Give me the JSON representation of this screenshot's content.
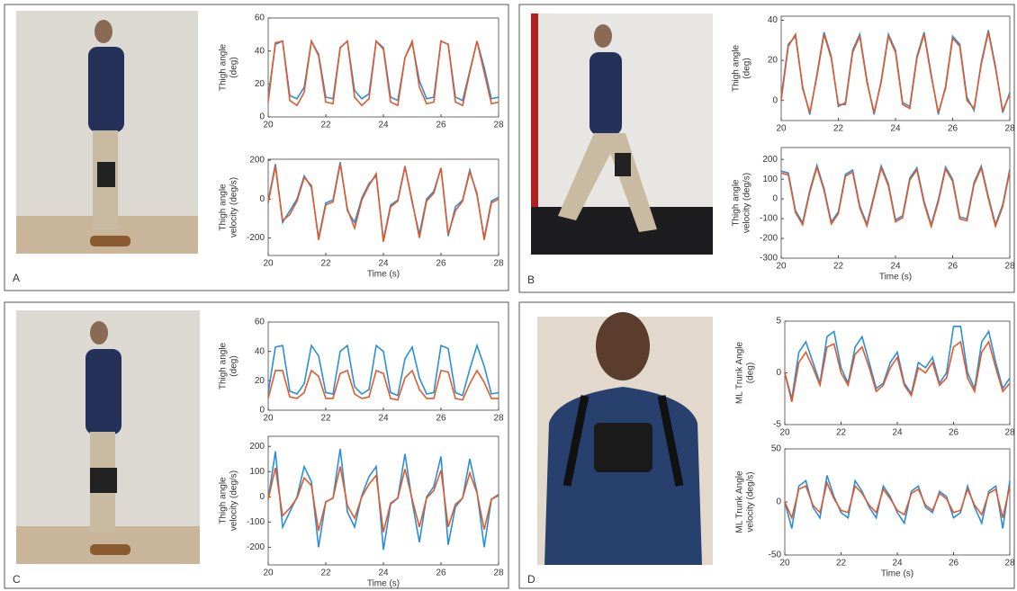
{
  "panels": [
    {
      "label": "A"
    },
    {
      "label": "B"
    },
    {
      "label": "C"
    },
    {
      "label": "D"
    }
  ],
  "chart_data": [
    {
      "type": "line",
      "ylabel": [
        "Thigh angle",
        "(deg)"
      ],
      "xlim": [
        20,
        28
      ],
      "xticks": [
        20,
        22,
        24,
        26,
        28
      ],
      "ylim": [
        0,
        60
      ],
      "yticks": [
        0,
        20,
        40,
        60
      ],
      "x": [
        20,
        20.25,
        20.5,
        20.75,
        21,
        21.25,
        21.5,
        21.75,
        22,
        22.25,
        22.5,
        22.75,
        23,
        23.25,
        23.5,
        23.75,
        24,
        24.25,
        24.5,
        24.75,
        25,
        25.25,
        25.5,
        25.75,
        26,
        26.25,
        26.5,
        26.75,
        27,
        27.25,
        27.5,
        27.75,
        28
      ],
      "series": [
        {
          "color": "#2b8fd8",
          "values": [
            12,
            44,
            46,
            13,
            11,
            18,
            46,
            38,
            12,
            11,
            42,
            46,
            16,
            11,
            14,
            46,
            42,
            12,
            10,
            36,
            45,
            22,
            11,
            12,
            46,
            44,
            12,
            10,
            28,
            46,
            30,
            11,
            12
          ]
        },
        {
          "color": "#e05a2b",
          "values": [
            9,
            45,
            46,
            10,
            7,
            15,
            46,
            37,
            9,
            8,
            42,
            46,
            12,
            7,
            11,
            46,
            41,
            9,
            7,
            36,
            46,
            18,
            8,
            9,
            46,
            44,
            9,
            7,
            27,
            46,
            27,
            8,
            9
          ]
        }
      ]
    },
    {
      "type": "line",
      "ylabel": [
        "Thigh angle",
        "velocity (deg/s)"
      ],
      "xlabel": "Time (s)",
      "xlim": [
        20,
        28
      ],
      "xticks": [
        20,
        22,
        24,
        26,
        28
      ],
      "ylim": [
        -290,
        205
      ],
      "yticks": [
        -200,
        0,
        200
      ],
      "x": [
        20,
        20.25,
        20.5,
        20.75,
        21,
        21.25,
        21.5,
        21.75,
        22,
        22.25,
        22.5,
        22.75,
        23,
        23.25,
        23.5,
        23.75,
        24,
        24.25,
        24.5,
        24.75,
        25,
        25.25,
        25.5,
        25.75,
        26,
        26.25,
        26.5,
        26.75,
        27,
        27.25,
        27.5,
        27.75,
        28
      ],
      "series": [
        {
          "color": "#2b8fd8",
          "values": [
            -10,
            180,
            -120,
            -60,
            0,
            120,
            60,
            -200,
            -20,
            -5,
            190,
            -60,
            -120,
            5,
            80,
            120,
            -210,
            -30,
            -5,
            170,
            -20,
            -180,
            0,
            40,
            160,
            -190,
            -40,
            -5,
            150,
            20,
            -200,
            -10,
            10
          ]
        },
        {
          "color": "#e05a2b",
          "values": [
            -20,
            170,
            -110,
            -80,
            -10,
            110,
            70,
            -210,
            -30,
            -15,
            180,
            -50,
            -150,
            -5,
            70,
            130,
            -220,
            -40,
            -10,
            165,
            -10,
            -200,
            -10,
            30,
            160,
            -180,
            -60,
            -10,
            140,
            30,
            -210,
            -20,
            0
          ]
        }
      ]
    },
    {
      "type": "line",
      "ylabel": [
        "Thigh angle",
        "(deg)"
      ],
      "xlim": [
        20,
        28
      ],
      "xticks": [
        20,
        22,
        24,
        26,
        28
      ],
      "ylim": [
        -10,
        42
      ],
      "yticks": [
        0,
        20,
        40
      ],
      "x": [
        20,
        20.25,
        20.5,
        20.75,
        21,
        21.25,
        21.5,
        21.75,
        22,
        22.25,
        22.5,
        22.75,
        23,
        23.25,
        23.5,
        23.75,
        24,
        24.25,
        24.5,
        24.75,
        25,
        25.25,
        25.5,
        25.75,
        26,
        26.25,
        26.5,
        26.75,
        27,
        27.25,
        27.5,
        27.75,
        28
      ],
      "series": [
        {
          "color": "#2b8fd8",
          "values": [
            1.5,
            28,
            32,
            7,
            -7,
            13,
            34,
            22,
            -3,
            -1,
            25,
            33,
            10,
            -7,
            10,
            33,
            25,
            -1,
            -3,
            22,
            34,
            13,
            -7,
            7,
            32,
            28,
            1.5,
            -5,
            19,
            35,
            17,
            -6,
            4
          ]
        },
        {
          "color": "#e05a2b",
          "values": [
            0,
            27,
            33,
            6,
            -6,
            12,
            33,
            21,
            -2,
            -2,
            24,
            32,
            9,
            -6,
            9,
            32,
            24,
            -2,
            -4,
            21,
            33,
            12,
            -6,
            6,
            31,
            27,
            0,
            -4,
            18,
            34,
            16,
            -5,
            3
          ]
        }
      ]
    },
    {
      "type": "line",
      "ylabel": [
        "Thigh angle",
        "velocity (deg/s)"
      ],
      "xlabel": "Time (s)",
      "xlim": [
        20,
        28
      ],
      "xticks": [
        20,
        22,
        24,
        26,
        28
      ],
      "ylim": [
        -300,
        260
      ],
      "yticks": [
        -300,
        -200,
        -100,
        0,
        100,
        200
      ],
      "x": [
        20,
        20.25,
        20.5,
        20.75,
        21,
        21.25,
        21.5,
        21.75,
        22,
        22.25,
        22.5,
        22.75,
        23,
        23.25,
        23.5,
        23.75,
        24,
        24.25,
        24.5,
        24.75,
        25,
        25.25,
        25.5,
        25.75,
        26,
        26.25,
        26.5,
        26.75,
        27,
        27.25,
        27.5,
        27.75,
        28
      ],
      "series": [
        {
          "color": "#2b8fd8",
          "values": [
            141,
            131,
            -59,
            -121,
            44,
            170,
            53,
            -117,
            -65,
            125,
            146,
            -36,
            -127,
            20,
            167,
            76,
            -106,
            -85,
            105,
            157,
            -13,
            -130,
            -4,
            161,
            99,
            -91,
            -101,
            84,
            166,
            11,
            -129,
            -30,
            150
          ]
        },
        {
          "color": "#e05a2b",
          "values": [
            131,
            121,
            -69,
            -131,
            34,
            160,
            43,
            -127,
            -75,
            115,
            136,
            -46,
            -137,
            10,
            157,
            66,
            -116,
            -95,
            95,
            147,
            -23,
            -140,
            -14,
            151,
            89,
            -101,
            -111,
            74,
            156,
            1,
            -139,
            -40,
            140
          ]
        }
      ]
    },
    {
      "type": "line",
      "ylabel": [
        "Thigh angle",
        "(deg)"
      ],
      "xlim": [
        20,
        28
      ],
      "xticks": [
        20,
        22,
        24,
        26,
        28
      ],
      "ylim": [
        0,
        60
      ],
      "yticks": [
        0,
        20,
        40,
        60
      ],
      "x": [
        20,
        20.25,
        20.5,
        20.75,
        21,
        21.25,
        21.5,
        21.75,
        22,
        22.25,
        22.5,
        22.75,
        23,
        23.25,
        23.5,
        23.75,
        24,
        24.25,
        24.5,
        24.75,
        25,
        25.25,
        25.5,
        25.75,
        26,
        26.25,
        26.5,
        26.75,
        27,
        27.25,
        27.5,
        27.75,
        28
      ],
      "series": [
        {
          "color": "#2b8fd8",
          "values": [
            12,
            43,
            44,
            13,
            11,
            18,
            44,
            37,
            12,
            11,
            40,
            44,
            16,
            11,
            14,
            44,
            40,
            12,
            10,
            35,
            43,
            22,
            11,
            12,
            44,
            42,
            12,
            10,
            28,
            44,
            30,
            11,
            12
          ]
        },
        {
          "color": "#e05a2b",
          "values": [
            8,
            27,
            27,
            9,
            8,
            12,
            27,
            23,
            8,
            8,
            25,
            27,
            11,
            8,
            9,
            27,
            25,
            8,
            7,
            22,
            27,
            14,
            8,
            8,
            27,
            26,
            8,
            7,
            18,
            27,
            19,
            8,
            8
          ]
        }
      ]
    },
    {
      "type": "line",
      "ylabel": [
        "Thigh angle",
        "velocity (deg/s)"
      ],
      "xlabel": "Time (s)",
      "xlim": [
        20,
        28
      ],
      "xticks": [
        20,
        22,
        24,
        26,
        28
      ],
      "ylim": [
        -270,
        240
      ],
      "yticks": [
        -200,
        -100,
        0,
        100,
        200
      ],
      "x": [
        20,
        20.25,
        20.5,
        20.75,
        21,
        21.25,
        21.5,
        21.75,
        22,
        22.25,
        22.5,
        22.75,
        23,
        23.25,
        23.5,
        23.75,
        24,
        24.25,
        24.5,
        24.75,
        25,
        25.25,
        25.5,
        25.75,
        26,
        26.25,
        26.5,
        26.75,
        27,
        27.25,
        27.5,
        27.75,
        28
      ],
      "series": [
        {
          "color": "#2b8fd8",
          "values": [
            -10,
            180,
            -120,
            -60,
            0,
            120,
            60,
            -200,
            -20,
            -5,
            190,
            -60,
            -120,
            5,
            80,
            120,
            -210,
            -30,
            -5,
            170,
            -20,
            -180,
            0,
            40,
            160,
            -190,
            -40,
            -5,
            150,
            20,
            -200,
            -10,
            10
          ]
        },
        {
          "color": "#e05a2b",
          "values": [
            -10,
            115,
            -75,
            -45,
            -5,
            75,
            45,
            -135,
            -20,
            -5,
            120,
            -35,
            -85,
            0,
            50,
            85,
            -140,
            -25,
            -5,
            110,
            -10,
            -120,
            -5,
            25,
            105,
            -120,
            -30,
            -5,
            95,
            15,
            -130,
            -10,
            5
          ]
        }
      ]
    },
    {
      "type": "line",
      "ylabel": [
        "ML Trunk Angle",
        "(deg)"
      ],
      "xlim": [
        20,
        28
      ],
      "xticks": [
        20,
        22,
        24,
        26,
        28
      ],
      "ylim": [
        -5,
        5
      ],
      "yticks": [
        -5,
        0,
        5
      ],
      "x": [
        20,
        20.25,
        20.5,
        20.75,
        21,
        21.25,
        21.5,
        21.75,
        22,
        22.25,
        22.5,
        22.75,
        23,
        23.25,
        23.5,
        23.75,
        24,
        24.25,
        24.5,
        24.75,
        25,
        25.25,
        25.5,
        25.75,
        26,
        26.25,
        26.5,
        26.75,
        27,
        27.25,
        27.5,
        27.75,
        28
      ],
      "series": [
        {
          "color": "#2b8fd8",
          "values": [
            0,
            -2.5,
            2,
            3,
            1,
            -1,
            3.5,
            4,
            0.5,
            -1,
            2.5,
            3.5,
            1,
            -1.5,
            -1,
            1,
            2,
            -1,
            -2,
            1,
            0.5,
            1.5,
            -1,
            0,
            4.5,
            4.5,
            0,
            -1.5,
            3,
            4,
            1,
            -1.5,
            -0.5
          ]
        },
        {
          "color": "#e05a2b",
          "values": [
            0,
            -2.8,
            1,
            2,
            0.5,
            -1.2,
            2.5,
            2.8,
            0,
            -1.2,
            1.8,
            2.5,
            0.5,
            -1.8,
            -1.2,
            0.5,
            1.5,
            -1.2,
            -2.2,
            0.5,
            0,
            1,
            -1.2,
            -0.5,
            2.5,
            3,
            -0.5,
            -1.8,
            2,
            3,
            0.5,
            -1.8,
            -1
          ]
        }
      ]
    },
    {
      "type": "line",
      "ylabel": [
        "ML Trunk Angle",
        "velocity (deg/s)"
      ],
      "xlabel": "Time (s)",
      "xlim": [
        20,
        28
      ],
      "xticks": [
        20,
        22,
        24,
        26,
        28
      ],
      "ylim": [
        -50,
        50
      ],
      "yticks": [
        -50,
        0,
        50
      ],
      "x": [
        20,
        20.25,
        20.5,
        20.75,
        21,
        21.25,
        21.5,
        21.75,
        22,
        22.25,
        22.5,
        22.75,
        23,
        23.25,
        23.5,
        23.75,
        24,
        24.25,
        24.5,
        24.75,
        25,
        25.25,
        25.5,
        25.75,
        26,
        26.25,
        26.5,
        26.75,
        27,
        27.25,
        27.5,
        27.75,
        28
      ],
      "series": [
        {
          "color": "#2b8fd8",
          "values": [
            0,
            -25,
            15,
            20,
            -5,
            -15,
            25,
            5,
            -10,
            -15,
            20,
            10,
            -5,
            -15,
            15,
            5,
            -10,
            -20,
            10,
            15,
            -5,
            -10,
            10,
            5,
            -15,
            -10,
            15,
            -5,
            -20,
            10,
            15,
            -25,
            20
          ]
        },
        {
          "color": "#e05a2b",
          "values": [
            0,
            -15,
            12,
            15,
            -3,
            -10,
            18,
            3,
            -8,
            -10,
            15,
            8,
            -3,
            -10,
            12,
            3,
            -8,
            -12,
            8,
            12,
            -3,
            -8,
            8,
            3,
            -10,
            -8,
            12,
            -3,
            -12,
            8,
            12,
            -15,
            15
          ]
        }
      ]
    }
  ]
}
